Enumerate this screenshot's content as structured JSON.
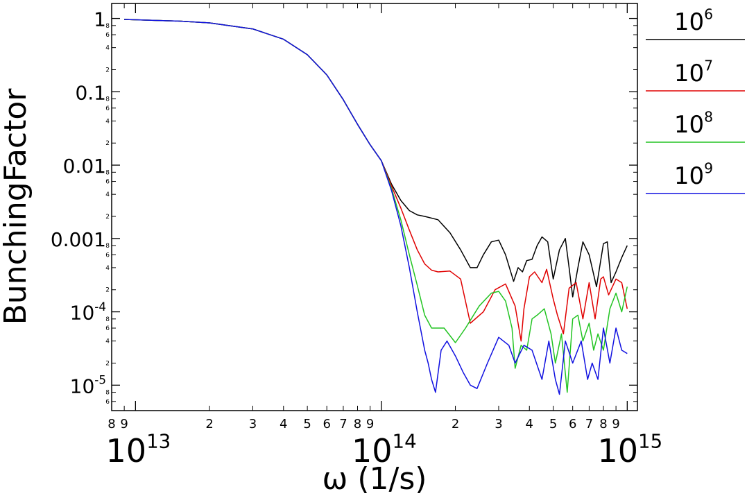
{
  "chart_data": {
    "type": "line",
    "xscale": "log",
    "yscale": "log",
    "xlim": [
      8000000000000.0,
      1100000000000000.0
    ],
    "ylim": [
      4.5e-06,
      1.6
    ],
    "xlabel": "ω (1/s)",
    "ylabel": "BunchingFactor",
    "legend_position": "right",
    "x_ticks": [
      {
        "value": 10000000000000.0,
        "base": "10",
        "exp": "13"
      },
      {
        "value": 100000000000000.0,
        "base": "10",
        "exp": "14"
      },
      {
        "value": 1000000000000000.0,
        "base": "10",
        "exp": "15"
      }
    ],
    "x_minor_ticks": [
      {
        "value": 8000000000000.0,
        "label": "8"
      },
      {
        "value": 9000000000000.0,
        "label": "9"
      },
      {
        "value": 20000000000000.0,
        "label": "2"
      },
      {
        "value": 30000000000000.0,
        "label": "3"
      },
      {
        "value": 40000000000000.0,
        "label": "4"
      },
      {
        "value": 50000000000000.0,
        "label": "5"
      },
      {
        "value": 60000000000000.0,
        "label": "6"
      },
      {
        "value": 70000000000000.0,
        "label": "7"
      },
      {
        "value": 80000000000000.0,
        "label": "8"
      },
      {
        "value": 90000000000000.0,
        "label": "9"
      },
      {
        "value": 200000000000000.0,
        "label": "2"
      },
      {
        "value": 300000000000000.0,
        "label": "3"
      },
      {
        "value": 400000000000000.0,
        "label": "4"
      },
      {
        "value": 500000000000000.0,
        "label": "5"
      },
      {
        "value": 600000000000000.0,
        "label": "6"
      },
      {
        "value": 700000000000000.0,
        "label": "7"
      },
      {
        "value": 800000000000000.0,
        "label": "8"
      },
      {
        "value": 900000000000000.0,
        "label": "9"
      }
    ],
    "y_ticks": [
      {
        "value": 1,
        "text": "1"
      },
      {
        "value": 0.1,
        "text": "0.1"
      },
      {
        "value": 0.01,
        "text": "0.01"
      },
      {
        "value": 0.001,
        "text": "0.001"
      },
      {
        "value": 0.0001,
        "base": "10",
        "exp": "-4"
      },
      {
        "value": 1e-05,
        "base": "10",
        "exp": "-5"
      }
    ],
    "y_minor_ticks": [
      {
        "value": 0.2,
        "label": "2"
      },
      {
        "value": 0.4,
        "label": "4"
      },
      {
        "value": 0.6,
        "label": "6"
      },
      {
        "value": 0.8,
        "label": "8"
      },
      {
        "value": 0.02,
        "label": "2"
      },
      {
        "value": 0.04,
        "label": "4"
      },
      {
        "value": 0.06,
        "label": "6"
      },
      {
        "value": 0.08,
        "label": "8"
      },
      {
        "value": 0.002,
        "label": "2"
      },
      {
        "value": 0.004,
        "label": "4"
      },
      {
        "value": 0.006,
        "label": "6"
      },
      {
        "value": 0.008,
        "label": "8"
      },
      {
        "value": 0.0002,
        "label": "2"
      },
      {
        "value": 0.0004,
        "label": "4"
      },
      {
        "value": 0.0006,
        "label": "6"
      },
      {
        "value": 0.0008,
        "label": "8"
      },
      {
        "value": 2e-05,
        "label": "2"
      },
      {
        "value": 4e-05,
        "label": "4"
      },
      {
        "value": 6e-05,
        "label": "6"
      },
      {
        "value": 8e-05,
        "label": "8"
      },
      {
        "value": 6e-06,
        "label": "6"
      },
      {
        "value": 8e-06,
        "label": "8"
      }
    ],
    "series": [
      {
        "name_base": "10",
        "name_exp": "6",
        "color": "#000000",
        "x": [
          9000000000000.0,
          15000000000000.0,
          20000000000000.0,
          30000000000000.0,
          40000000000000.0,
          50000000000000.0,
          60000000000000.0,
          70000000000000.0,
          80000000000000.0,
          90000000000000.0,
          100000000000000.0,
          110000000000000.0,
          120000000000000.0,
          130000000000000.0,
          140000000000000.0,
          150000000000000.0,
          170000000000000.0,
          190000000000000.0,
          210000000000000.0,
          230000000000000.0,
          245000000000000.0,
          260000000000000.0,
          280000000000000.0,
          300000000000000.0,
          320000000000000.0,
          345000000000000.0,
          360000000000000.0,
          375000000000000.0,
          390000000000000.0,
          410000000000000.0,
          430000000000000.0,
          450000000000000.0,
          475000000000000.0,
          500000000000000.0,
          530000000000000.0,
          560000000000000.0,
          580000000000000.0,
          600000000000000.0,
          630000000000000.0,
          660000000000000.0,
          700000000000000.0,
          750000000000000.0,
          800000000000000.0,
          830000000000000.0,
          860000000000000.0,
          900000000000000.0,
          950000000000000.0,
          1000000000000000.0
        ],
        "y": [
          0.97,
          0.92,
          0.87,
          0.72,
          0.52,
          0.32,
          0.17,
          0.078,
          0.036,
          0.019,
          0.0115,
          0.0055,
          0.0033,
          0.0024,
          0.0021,
          0.002,
          0.0018,
          0.0012,
          0.0007,
          0.0004,
          0.0004,
          0.0006,
          0.0009,
          0.00095,
          0.0006,
          0.00026,
          0.0004,
          0.00035,
          0.0005,
          0.00052,
          0.0008,
          0.00105,
          0.0009,
          0.00028,
          0.0007,
          0.001,
          0.0004,
          0.00016,
          0.0004,
          0.0009,
          0.0006,
          0.00022,
          0.00085,
          0.0009,
          0.00025,
          0.00035,
          0.00055,
          0.0008
        ]
      },
      {
        "name_base": "10",
        "name_exp": "7",
        "color": "#e00000",
        "x": [
          9000000000000.0,
          15000000000000.0,
          20000000000000.0,
          30000000000000.0,
          40000000000000.0,
          50000000000000.0,
          60000000000000.0,
          70000000000000.0,
          80000000000000.0,
          90000000000000.0,
          100000000000000.0,
          110000000000000.0,
          120000000000000.0,
          130000000000000.0,
          140000000000000.0,
          150000000000000.0,
          160000000000000.0,
          170000000000000.0,
          190000000000000.0,
          210000000000000.0,
          230000000000000.0,
          260000000000000.0,
          290000000000000.0,
          320000000000000.0,
          350000000000000.0,
          370000000000000.0,
          380000000000000.0,
          400000000000000.0,
          420000000000000.0,
          450000000000000.0,
          470000000000000.0,
          500000000000000.0,
          520000000000000.0,
          550000000000000.0,
          580000000000000.0,
          620000000000000.0,
          660000000000000.0,
          700000000000000.0,
          740000000000000.0,
          780000000000000.0,
          800000000000000.0,
          840000000000000.0,
          900000000000000.0,
          950000000000000.0,
          1000000000000000.0
        ],
        "y": [
          0.97,
          0.92,
          0.87,
          0.72,
          0.52,
          0.32,
          0.17,
          0.078,
          0.036,
          0.019,
          0.0115,
          0.0052,
          0.0026,
          0.0013,
          0.0007,
          0.00045,
          0.00037,
          0.00035,
          0.00036,
          0.00028,
          7e-05,
          0.0001,
          0.0002,
          0.00024,
          0.00012,
          4e-05,
          0.00011,
          0.0003,
          0.00035,
          0.00025,
          0.00038,
          0.00015,
          9e-05,
          5e-05,
          0.00021,
          0.00025,
          8e-05,
          0.00025,
          8e-05,
          0.00028,
          0.0003,
          0.00017,
          0.00028,
          0.00025,
          0.00011
        ]
      },
      {
        "name_base": "10",
        "name_exp": "8",
        "color": "#22c422",
        "x": [
          9000000000000.0,
          15000000000000.0,
          20000000000000.0,
          30000000000000.0,
          40000000000000.0,
          50000000000000.0,
          60000000000000.0,
          70000000000000.0,
          80000000000000.0,
          90000000000000.0,
          100000000000000.0,
          110000000000000.0,
          120000000000000.0,
          130000000000000.0,
          140000000000000.0,
          150000000000000.0,
          160000000000000.0,
          170000000000000.0,
          180000000000000.0,
          200000000000000.0,
          220000000000000.0,
          250000000000000.0,
          280000000000000.0,
          300000000000000.0,
          320000000000000.0,
          340000000000000.0,
          350000000000000.0,
          370000000000000.0,
          390000000000000.0,
          410000000000000.0,
          430000000000000.0,
          460000000000000.0,
          490000000000000.0,
          510000000000000.0,
          540000000000000.0,
          570000000000000.0,
          600000000000000.0,
          630000000000000.0,
          660000000000000.0,
          700000000000000.0,
          730000000000000.0,
          760000000000000.0,
          800000000000000.0,
          850000000000000.0,
          900000000000000.0,
          950000000000000.0,
          1000000000000000.0
        ],
        "y": [
          0.97,
          0.92,
          0.87,
          0.72,
          0.52,
          0.32,
          0.17,
          0.078,
          0.036,
          0.019,
          0.0115,
          0.0048,
          0.0018,
          0.0006,
          0.00023,
          9e-05,
          6e-05,
          6e-05,
          6e-05,
          3.8e-05,
          6e-05,
          0.00012,
          0.00018,
          0.00019,
          0.00014,
          6e-05,
          1.7e-05,
          3.5e-05,
          3e-05,
          8e-05,
          9e-05,
          0.00011,
          5e-05,
          2e-05,
          5e-05,
          8e-06,
          8e-05,
          9e-05,
          4e-05,
          7e-05,
          3e-05,
          5e-05,
          3e-05,
          0.00011,
          0.00018,
          0.0001,
          0.00022
        ]
      },
      {
        "name_base": "10",
        "name_exp": "9",
        "color": "#1010e0",
        "x": [
          9000000000000.0,
          15000000000000.0,
          20000000000000.0,
          30000000000000.0,
          40000000000000.0,
          50000000000000.0,
          60000000000000.0,
          70000000000000.0,
          80000000000000.0,
          90000000000000.0,
          100000000000000.0,
          110000000000000.0,
          120000000000000.0,
          130000000000000.0,
          140000000000000.0,
          150000000000000.0,
          155000000000000.0,
          160000000000000.0,
          166000000000000.0,
          175000000000000.0,
          185000000000000.0,
          200000000000000.0,
          215000000000000.0,
          230000000000000.0,
          245000000000000.0,
          270000000000000.0,
          300000000000000.0,
          330000000000000.0,
          350000000000000.0,
          380000000000000.0,
          410000000000000.0,
          450000000000000.0,
          480000000000000.0,
          510000000000000.0,
          530000000000000.0,
          560000000000000.0,
          600000000000000.0,
          650000000000000.0,
          690000000000000.0,
          720000000000000.0,
          760000000000000.0,
          800000000000000.0,
          850000000000000.0,
          900000000000000.0,
          950000000000000.0,
          1000000000000000.0
        ],
        "y": [
          0.97,
          0.92,
          0.87,
          0.72,
          0.52,
          0.32,
          0.17,
          0.078,
          0.036,
          0.019,
          0.0115,
          0.0045,
          0.0015,
          0.0004,
          0.0001,
          3e-05,
          2e-05,
          1.2e-05,
          8e-06,
          3e-05,
          4e-05,
          2.5e-05,
          1.5e-05,
          1e-05,
          9e-06,
          2e-05,
          4.5e-05,
          3.5e-05,
          2e-05,
          3.5e-05,
          3e-05,
          1.2e-05,
          4e-05,
          1.2e-05,
          7.5e-06,
          4e-05,
          2e-05,
          4e-05,
          1.2e-05,
          2e-05,
          1.2e-05,
          6e-05,
          2e-05,
          6e-05,
          3e-05,
          2.7e-05
        ]
      }
    ]
  }
}
